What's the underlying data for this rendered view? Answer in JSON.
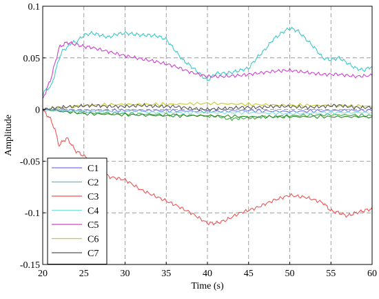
{
  "chart_data": {
    "type": "line",
    "title": "",
    "xlabel": "Time (s)",
    "ylabel": "Amplitude",
    "xlim": [
      20,
      60
    ],
    "ylim": [
      -0.15,
      0.1
    ],
    "xticks": [
      20,
      25,
      30,
      35,
      40,
      45,
      50,
      55,
      60
    ],
    "xtick_labels": [
      "20",
      "25",
      "30",
      "35",
      "40",
      "45",
      "50",
      "55",
      "60"
    ],
    "yticks": [
      0.1,
      0.05,
      0,
      -0.05,
      -0.1,
      -0.15
    ],
    "ytick_labels": [
      "0.1",
      "0.05",
      "0",
      "-0.05",
      "-0.1",
      "-0.15"
    ],
    "grid": true,
    "legend_position": "bottom-left",
    "series": [
      {
        "name": "C1",
        "color": "#7070ee",
        "x": [
          20,
          25,
          30,
          35,
          40,
          45,
          50,
          55,
          60
        ],
        "y": [
          0.0,
          -0.001,
          -0.001,
          -0.001,
          -0.002,
          -0.001,
          -0.002,
          -0.001,
          -0.001
        ]
      },
      {
        "name": "C2",
        "color": "#3fc8c8",
        "x": [
          20,
          20.5,
          21,
          21.5,
          22,
          22.5,
          23,
          23.5,
          24,
          25,
          26,
          27,
          28,
          29,
          30,
          31,
          32,
          33,
          34,
          35,
          36,
          37,
          38,
          39,
          40,
          41,
          42,
          43,
          44,
          45,
          46,
          47,
          48,
          49,
          50,
          51,
          52,
          53,
          54,
          55,
          56,
          57,
          58,
          59,
          60
        ],
        "y": [
          0.015,
          0.02,
          0.022,
          0.035,
          0.05,
          0.058,
          0.06,
          0.065,
          0.065,
          0.072,
          0.074,
          0.072,
          0.07,
          0.073,
          0.074,
          0.073,
          0.072,
          0.072,
          0.071,
          0.068,
          0.058,
          0.048,
          0.042,
          0.035,
          0.028,
          0.035,
          0.035,
          0.036,
          0.038,
          0.04,
          0.05,
          0.058,
          0.068,
          0.074,
          0.079,
          0.076,
          0.068,
          0.06,
          0.05,
          0.048,
          0.05,
          0.045,
          0.04,
          0.038,
          0.042
        ]
      },
      {
        "name": "C3",
        "color": "#ee5555",
        "x": [
          20,
          20.5,
          21,
          21.5,
          22,
          22.5,
          23,
          24,
          25,
          26,
          28,
          30,
          32,
          34,
          36,
          38,
          40,
          41,
          42,
          44,
          46,
          48,
          50,
          52,
          54,
          55,
          56,
          57,
          58,
          59,
          60
        ],
        "y": [
          0.0,
          -0.005,
          -0.01,
          -0.02,
          -0.035,
          -0.03,
          -0.028,
          -0.04,
          -0.045,
          -0.05,
          -0.065,
          -0.068,
          -0.078,
          -0.085,
          -0.092,
          -0.1,
          -0.11,
          -0.11,
          -0.108,
          -0.1,
          -0.095,
          -0.088,
          -0.083,
          -0.085,
          -0.09,
          -0.098,
          -0.1,
          -0.103,
          -0.1,
          -0.098,
          -0.096
        ]
      },
      {
        "name": "C4",
        "color": "#7fe0e0",
        "x": [
          20,
          25,
          30,
          35,
          40,
          45,
          50,
          55,
          60
        ],
        "y": [
          0.0,
          -0.002,
          -0.002,
          -0.003,
          -0.003,
          -0.003,
          -0.004,
          -0.003,
          -0.003
        ]
      },
      {
        "name": "C5",
        "color": "#d040d0",
        "x": [
          20,
          20.5,
          21,
          21.5,
          22,
          22.5,
          23,
          24,
          25,
          26,
          28,
          30,
          32,
          34,
          36,
          38,
          40,
          42,
          44,
          46,
          48,
          50,
          52,
          54,
          56,
          58,
          60
        ],
        "y": [
          0.01,
          0.02,
          0.03,
          0.045,
          0.06,
          0.063,
          0.065,
          0.063,
          0.061,
          0.06,
          0.056,
          0.052,
          0.049,
          0.046,
          0.042,
          0.036,
          0.032,
          0.032,
          0.033,
          0.035,
          0.037,
          0.038,
          0.036,
          0.034,
          0.034,
          0.032,
          0.033
        ]
      },
      {
        "name": "C6",
        "color": "#c8c830",
        "x": [
          20,
          25,
          30,
          35,
          40,
          45,
          50,
          55,
          60
        ],
        "y": [
          0.0,
          0.004,
          0.005,
          0.005,
          0.006,
          0.005,
          0.004,
          0.004,
          0.003
        ]
      },
      {
        "name": "C7",
        "color": "#555555",
        "x": [
          20,
          22,
          24,
          26,
          28,
          30,
          32,
          34,
          36,
          38,
          40,
          42,
          44,
          46,
          48,
          50,
          52,
          54,
          56,
          58,
          60
        ],
        "y": [
          0.0,
          0.002,
          0.003,
          0.004,
          0.003,
          0.003,
          0.004,
          0.003,
          0.003,
          0.001,
          0.0,
          0.001,
          0.002,
          0.002,
          0.003,
          0.003,
          0.002,
          0.003,
          0.004,
          0.002,
          0.002
        ]
      },
      {
        "name": "",
        "color": "#40aa40",
        "x": [
          20,
          25,
          30,
          35,
          40,
          43,
          45,
          48,
          50,
          55,
          60
        ],
        "y": [
          0.0,
          -0.003,
          -0.004,
          -0.005,
          -0.006,
          -0.009,
          -0.008,
          -0.007,
          -0.006,
          -0.005,
          -0.006
        ]
      },
      {
        "name": "",
        "color": "#2a8a2a",
        "x": [
          20,
          25,
          30,
          35,
          40,
          45,
          50,
          55,
          60
        ],
        "y": [
          0.0,
          -0.004,
          -0.005,
          -0.006,
          -0.006,
          -0.007,
          -0.007,
          -0.007,
          -0.007
        ]
      },
      {
        "name": "",
        "color": "#3333dd",
        "x": [
          20,
          25,
          30,
          35,
          40,
          45,
          50,
          55,
          60
        ],
        "y": [
          0.0,
          0.0,
          -0.001,
          -0.001,
          -0.001,
          -0.002,
          -0.001,
          -0.001,
          -0.002
        ]
      }
    ]
  }
}
